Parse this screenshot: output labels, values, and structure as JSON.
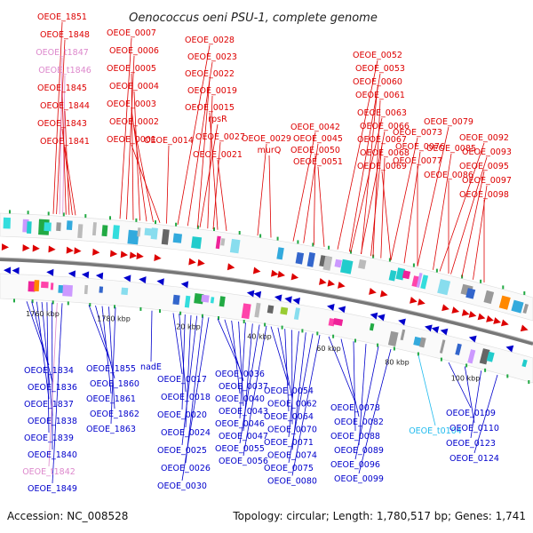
{
  "title": "Oenococcus oeni PSU-1, complete genome",
  "footer": {
    "accession": "Accession: NC_008528",
    "summary": "Topology: circular; Length: 1,780,517 bp; Genes: 1,741"
  },
  "colors": {
    "forward": "#dd0000",
    "reverse": "#0000cc",
    "trna": "#dd88cc",
    "trna_rev": "#22bbee",
    "backbone": "#777777"
  },
  "kbp_labels": [
    "1760 kbp",
    "1780 kbp",
    "20 kbp",
    "40 kbp",
    "60 kbp",
    "80 kbp",
    "100 kbp"
  ],
  "upper_labels": [
    {
      "name": "OEOE_1851",
      "kind": "gene"
    },
    {
      "name": "OEOE_1848",
      "kind": "gene"
    },
    {
      "name": "OEOE_t1847",
      "kind": "trna"
    },
    {
      "name": "OEOE_t1846",
      "kind": "trna"
    },
    {
      "name": "OEOE_1845",
      "kind": "gene"
    },
    {
      "name": "OEOE_1844",
      "kind": "gene"
    },
    {
      "name": "OEOE_1843",
      "kind": "gene"
    },
    {
      "name": "OEOE_1841",
      "kind": "gene"
    },
    {
      "name": "OEOE_0007",
      "kind": "gene"
    },
    {
      "name": "OEOE_0006",
      "kind": "gene"
    },
    {
      "name": "OEOE_0005",
      "kind": "gene"
    },
    {
      "name": "OEOE_0004",
      "kind": "gene"
    },
    {
      "name": "OEOE_0003",
      "kind": "gene"
    },
    {
      "name": "OEOE_0002",
      "kind": "gene"
    },
    {
      "name": "OEOE_0001",
      "kind": "gene"
    },
    {
      "name": "OEOE_0028",
      "kind": "gene"
    },
    {
      "name": "OEOE_0023",
      "kind": "gene"
    },
    {
      "name": "OEOE_0022",
      "kind": "gene"
    },
    {
      "name": "OEOE_0019",
      "kind": "gene"
    },
    {
      "name": "OEOE_0015",
      "kind": "gene"
    },
    {
      "name": "OEOE_0014",
      "kind": "gene"
    },
    {
      "name": "rpsR",
      "kind": "gene"
    },
    {
      "name": "OEOE_0027",
      "kind": "gene"
    },
    {
      "name": "OEOE_0021",
      "kind": "gene"
    },
    {
      "name": "OEOE_0029",
      "kind": "gene"
    },
    {
      "name": "murQ",
      "kind": "gene"
    },
    {
      "name": "OEOE_0042",
      "kind": "gene"
    },
    {
      "name": "OEOE_0045",
      "kind": "gene"
    },
    {
      "name": "OEOE_0050",
      "kind": "gene"
    },
    {
      "name": "OEOE_0051",
      "kind": "gene"
    },
    {
      "name": "OEOE_0052",
      "kind": "gene"
    },
    {
      "name": "OEOE_0053",
      "kind": "gene"
    },
    {
      "name": "OEOE_0060",
      "kind": "gene"
    },
    {
      "name": "OEOE_0061",
      "kind": "gene"
    },
    {
      "name": "OEOE_0063",
      "kind": "gene"
    },
    {
      "name": "OEOE_0066",
      "kind": "gene"
    },
    {
      "name": "OEOE_0067",
      "kind": "gene"
    },
    {
      "name": "OEOE_0068",
      "kind": "gene"
    },
    {
      "name": "OEOE_0069",
      "kind": "gene"
    },
    {
      "name": "OEOE_0073",
      "kind": "gene"
    },
    {
      "name": "OEOE_0076",
      "kind": "gene"
    },
    {
      "name": "OEOE_0077",
      "kind": "gene"
    },
    {
      "name": "OEOE_0079",
      "kind": "gene"
    },
    {
      "name": "OEOE_0085",
      "kind": "gene"
    },
    {
      "name": "OEOE_0086",
      "kind": "gene"
    },
    {
      "name": "OEOE_0092",
      "kind": "gene"
    },
    {
      "name": "OEOE_0093",
      "kind": "gene"
    },
    {
      "name": "OEOE_0095",
      "kind": "gene"
    },
    {
      "name": "OEOE_0097",
      "kind": "gene"
    },
    {
      "name": "OEOE_0098",
      "kind": "gene"
    },
    {
      "name": "OEOE_0100",
      "kind": "gene"
    }
  ],
  "lower_labels": [
    {
      "name": "OEOE_1834",
      "kind": "gene"
    },
    {
      "name": "OEOE_1836",
      "kind": "gene"
    },
    {
      "name": "OEOE_1837",
      "kind": "gene"
    },
    {
      "name": "OEOE_1838",
      "kind": "gene"
    },
    {
      "name": "OEOE_1839",
      "kind": "gene"
    },
    {
      "name": "OEOE_1840",
      "kind": "gene"
    },
    {
      "name": "OEOE_t1842",
      "kind": "trna"
    },
    {
      "name": "OEOE_1849",
      "kind": "gene"
    },
    {
      "name": "OEOE_1855",
      "kind": "gene"
    },
    {
      "name": "OEOE_1860",
      "kind": "gene"
    },
    {
      "name": "OEOE_1861",
      "kind": "gene"
    },
    {
      "name": "OEOE_1862",
      "kind": "gene"
    },
    {
      "name": "OEOE_1863",
      "kind": "gene"
    },
    {
      "name": "nadE",
      "kind": "gene"
    },
    {
      "name": "OEOE_0017",
      "kind": "gene"
    },
    {
      "name": "OEOE_0018",
      "kind": "gene"
    },
    {
      "name": "OEOE_0020",
      "kind": "gene"
    },
    {
      "name": "OEOE_0024",
      "kind": "gene"
    },
    {
      "name": "OEOE_0025",
      "kind": "gene"
    },
    {
      "name": "OEOE_0026",
      "kind": "gene"
    },
    {
      "name": "OEOE_0030",
      "kind": "gene"
    },
    {
      "name": "OEOE_0036",
      "kind": "gene"
    },
    {
      "name": "OEOE_0037",
      "kind": "gene"
    },
    {
      "name": "OEOE_0040",
      "kind": "gene"
    },
    {
      "name": "OEOE_0043",
      "kind": "gene"
    },
    {
      "name": "OEOE_0046",
      "kind": "gene"
    },
    {
      "name": "OEOE_0047",
      "kind": "gene"
    },
    {
      "name": "OEOE_0055",
      "kind": "gene"
    },
    {
      "name": "OEOE_0056",
      "kind": "gene"
    },
    {
      "name": "OEOE_0054",
      "kind": "gene"
    },
    {
      "name": "OEOE_0062",
      "kind": "gene"
    },
    {
      "name": "OEOE_0064",
      "kind": "gene"
    },
    {
      "name": "OEOE_0070",
      "kind": "gene"
    },
    {
      "name": "OEOE_0071",
      "kind": "gene"
    },
    {
      "name": "OEOE_0074",
      "kind": "gene"
    },
    {
      "name": "OEOE_0075",
      "kind": "gene"
    },
    {
      "name": "OEOE_0080",
      "kind": "gene"
    },
    {
      "name": "OEOE_0078",
      "kind": "gene"
    },
    {
      "name": "OEOE_0082",
      "kind": "gene"
    },
    {
      "name": "OEOE_0088",
      "kind": "gene"
    },
    {
      "name": "OEOE_0089",
      "kind": "gene"
    },
    {
      "name": "OEOE_0096",
      "kind": "gene"
    },
    {
      "name": "OEOE_0099",
      "kind": "gene"
    },
    {
      "name": "OEOE_t0104",
      "kind": "trna_rev"
    },
    {
      "name": "OEOE_0109",
      "kind": "gene"
    },
    {
      "name": "OEOE_0110",
      "kind": "gene"
    },
    {
      "name": "OEOE_0123",
      "kind": "gene"
    },
    {
      "name": "OEOE_0124",
      "kind": "gene"
    }
  ]
}
